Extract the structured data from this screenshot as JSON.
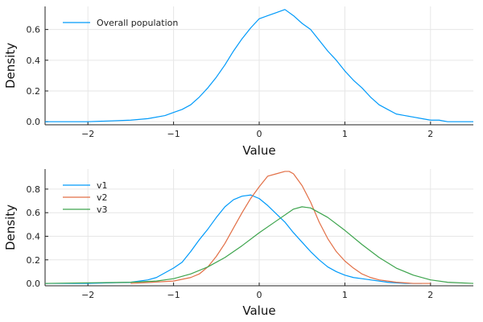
{
  "chart_data": [
    {
      "type": "line",
      "xlabel": "Value",
      "ylabel": "Density",
      "xlim": [
        -2.5,
        2.5
      ],
      "ylim": [
        -0.02,
        0.75
      ],
      "xticks": [
        -2,
        -1,
        0,
        1,
        2
      ],
      "xtick_labels": [
        "−2",
        "−1",
        "0",
        "1",
        "2"
      ],
      "yticks": [
        0.0,
        0.2,
        0.4,
        0.6
      ],
      "ytick_labels": [
        "0.0",
        "0.2",
        "0.4",
        "0.6"
      ],
      "grid": true,
      "legend_position": "top-left",
      "series": [
        {
          "name": "Overall population",
          "color": "#009AFA",
          "x": [
            -2.5,
            -2.0,
            -1.5,
            -1.3,
            -1.1,
            -1.0,
            -0.9,
            -0.8,
            -0.7,
            -0.6,
            -0.5,
            -0.4,
            -0.3,
            -0.2,
            -0.1,
            0.0,
            0.1,
            0.2,
            0.3,
            0.4,
            0.5,
            0.6,
            0.7,
            0.8,
            0.9,
            1.0,
            1.1,
            1.2,
            1.3,
            1.4,
            1.5,
            1.6,
            1.7,
            1.8,
            1.9,
            2.0,
            2.1,
            2.2,
            2.5
          ],
          "y": [
            0.0,
            0.0,
            0.01,
            0.02,
            0.04,
            0.06,
            0.08,
            0.11,
            0.16,
            0.22,
            0.29,
            0.37,
            0.46,
            0.54,
            0.61,
            0.67,
            0.69,
            0.71,
            0.73,
            0.69,
            0.64,
            0.6,
            0.53,
            0.46,
            0.4,
            0.33,
            0.27,
            0.22,
            0.16,
            0.11,
            0.08,
            0.05,
            0.04,
            0.03,
            0.02,
            0.01,
            0.01,
            0.0,
            0.0
          ]
        }
      ]
    },
    {
      "type": "line",
      "xlabel": "Value",
      "ylabel": "Density",
      "xlim": [
        -2.5,
        2.5
      ],
      "ylim": [
        -0.02,
        0.97
      ],
      "xticks": [
        -2,
        -1,
        0,
        1,
        2
      ],
      "xtick_labels": [
        "−2",
        "−1",
        "0",
        "1",
        "2"
      ],
      "yticks": [
        0.0,
        0.2,
        0.4,
        0.6,
        0.8
      ],
      "ytick_labels": [
        "0.0",
        "0.2",
        "0.4",
        "0.6",
        "0.8"
      ],
      "grid": true,
      "legend_position": "top-left",
      "series": [
        {
          "name": "v1",
          "color": "#009AFA",
          "x": [
            -2.5,
            -2.0,
            -1.5,
            -1.3,
            -1.2,
            -1.1,
            -1.0,
            -0.9,
            -0.8,
            -0.7,
            -0.6,
            -0.5,
            -0.4,
            -0.3,
            -0.2,
            -0.1,
            0.0,
            0.1,
            0.2,
            0.3,
            0.4,
            0.5,
            0.6,
            0.7,
            0.8,
            0.9,
            1.0,
            1.1,
            1.2,
            1.3,
            1.5,
            1.7,
            1.9
          ],
          "y": [
            0.0,
            0.0,
            0.01,
            0.03,
            0.05,
            0.09,
            0.13,
            0.18,
            0.27,
            0.37,
            0.46,
            0.56,
            0.65,
            0.71,
            0.74,
            0.75,
            0.72,
            0.66,
            0.59,
            0.52,
            0.43,
            0.35,
            0.27,
            0.2,
            0.14,
            0.1,
            0.07,
            0.05,
            0.04,
            0.03,
            0.01,
            0.0,
            0.0
          ]
        },
        {
          "name": "v2",
          "color": "#E26F46",
          "x": [
            -1.5,
            -1.0,
            -0.8,
            -0.7,
            -0.6,
            -0.5,
            -0.4,
            -0.3,
            -0.2,
            -0.1,
            0.0,
            0.1,
            0.2,
            0.3,
            0.35,
            0.4,
            0.5,
            0.6,
            0.7,
            0.8,
            0.9,
            1.0,
            1.1,
            1.2,
            1.3,
            1.4,
            1.5,
            1.6,
            1.8,
            2.0
          ],
          "y": [
            0.0,
            0.02,
            0.05,
            0.08,
            0.14,
            0.23,
            0.34,
            0.47,
            0.6,
            0.72,
            0.82,
            0.91,
            0.93,
            0.95,
            0.95,
            0.93,
            0.83,
            0.69,
            0.52,
            0.38,
            0.27,
            0.19,
            0.13,
            0.08,
            0.05,
            0.03,
            0.02,
            0.01,
            0.0,
            0.0
          ]
        },
        {
          "name": "v3",
          "color": "#3DA44D",
          "x": [
            -2.5,
            -1.5,
            -1.2,
            -1.0,
            -0.8,
            -0.6,
            -0.4,
            -0.2,
            0.0,
            0.2,
            0.4,
            0.5,
            0.6,
            0.8,
            1.0,
            1.2,
            1.4,
            1.6,
            1.8,
            2.0,
            2.2,
            2.5
          ],
          "y": [
            0.0,
            0.01,
            0.02,
            0.04,
            0.08,
            0.14,
            0.22,
            0.32,
            0.43,
            0.53,
            0.63,
            0.65,
            0.64,
            0.56,
            0.45,
            0.33,
            0.22,
            0.13,
            0.07,
            0.03,
            0.01,
            0.0
          ]
        }
      ]
    }
  ]
}
